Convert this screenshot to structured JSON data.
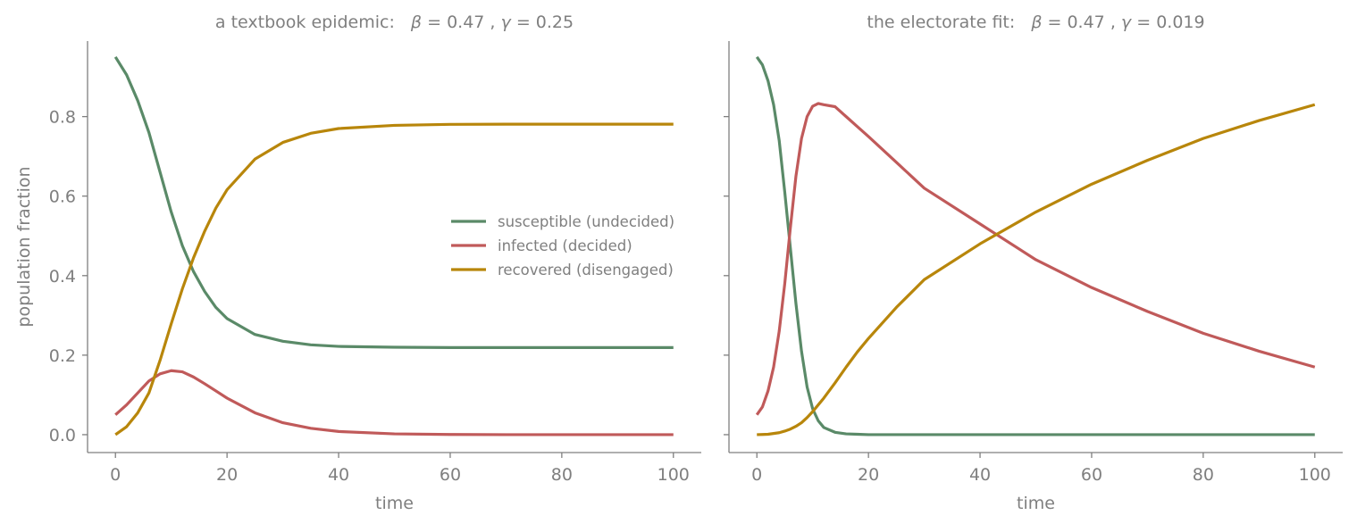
{
  "colors": {
    "susceptible": "#5a8a68",
    "infected": "#c05a5a",
    "recovered": "#b8860b",
    "text": "#7f7f7f"
  },
  "chart_data": [
    {
      "type": "line",
      "title_prefix": "a textbook epidemic:",
      "title_params": [
        {
          "symbol": "β",
          "value": "0.47"
        },
        {
          "symbol": "γ",
          "value": "0.25"
        }
      ],
      "xlabel": "time",
      "ylabel": "population fraction",
      "xlim": [
        -5,
        105
      ],
      "ylim": [
        -0.045,
        0.99
      ],
      "xticks": [
        0,
        20,
        40,
        60,
        80,
        100
      ],
      "xtick_labels": [
        "0",
        "20",
        "40",
        "60",
        "80",
        "100"
      ],
      "yticks": [
        0.0,
        0.2,
        0.4,
        0.6,
        0.8
      ],
      "ytick_labels": [
        "0.0",
        "0.2",
        "0.4",
        "0.6",
        "0.8"
      ],
      "show_yticklabels": true,
      "grid": false,
      "legend_position": "center-right",
      "x": [
        0,
        2,
        4,
        6,
        8,
        10,
        12,
        14,
        16,
        18,
        20,
        25,
        30,
        35,
        40,
        50,
        60,
        70,
        80,
        90,
        100
      ],
      "series": [
        {
          "name": "susceptible (undecided)",
          "color_key": "susceptible",
          "values": [
            0.95,
            0.905,
            0.84,
            0.76,
            0.66,
            0.56,
            0.475,
            0.41,
            0.36,
            0.32,
            0.292,
            0.252,
            0.235,
            0.226,
            0.222,
            0.22,
            0.219,
            0.219,
            0.219,
            0.219,
            0.219
          ]
        },
        {
          "name": "infected (decided)",
          "color_key": "infected",
          "values": [
            0.05,
            0.075,
            0.105,
            0.135,
            0.153,
            0.161,
            0.158,
            0.145,
            0.128,
            0.11,
            0.092,
            0.055,
            0.03,
            0.016,
            0.008,
            0.002,
            0.0005,
            0.0,
            0.0,
            0.0,
            0.0
          ]
        },
        {
          "name": "recovered (disengaged)",
          "color_key": "recovered",
          "values": [
            0.0,
            0.02,
            0.055,
            0.105,
            0.187,
            0.279,
            0.367,
            0.445,
            0.512,
            0.57,
            0.616,
            0.693,
            0.735,
            0.758,
            0.77,
            0.778,
            0.7805,
            0.781,
            0.781,
            0.781,
            0.781
          ]
        }
      ]
    },
    {
      "type": "line",
      "title_prefix": "the electorate fit:",
      "title_params": [
        {
          "symbol": "β",
          "value": "0.47"
        },
        {
          "symbol": "γ",
          "value": "0.019"
        }
      ],
      "xlabel": "time",
      "ylabel": "",
      "xlim": [
        -5,
        105
      ],
      "ylim": [
        -0.045,
        0.99
      ],
      "xticks": [
        0,
        20,
        40,
        60,
        80,
        100
      ],
      "xtick_labels": [
        "0",
        "20",
        "40",
        "60",
        "80",
        "100"
      ],
      "yticks": [
        0.0,
        0.2,
        0.4,
        0.6,
        0.8
      ],
      "ytick_labels": [
        "",
        "",
        "",
        "",
        ""
      ],
      "show_yticklabels": false,
      "grid": false,
      "x": [
        0,
        1,
        2,
        3,
        4,
        5,
        6,
        7,
        8,
        9,
        10,
        11,
        12,
        14,
        16,
        18,
        20,
        25,
        30,
        40,
        50,
        60,
        70,
        80,
        90,
        100
      ],
      "series": [
        {
          "name": "susceptible (undecided)",
          "color_key": "susceptible",
          "values": [
            0.95,
            0.93,
            0.89,
            0.83,
            0.74,
            0.61,
            0.47,
            0.33,
            0.21,
            0.12,
            0.065,
            0.035,
            0.018,
            0.006,
            0.002,
            0.001,
            0.0,
            0.0,
            0.0,
            0.0,
            0.0,
            0.0,
            0.0,
            0.0,
            0.0,
            0.0
          ]
        },
        {
          "name": "infected (decided)",
          "color_key": "infected",
          "values": [
            0.05,
            0.07,
            0.11,
            0.17,
            0.26,
            0.38,
            0.52,
            0.65,
            0.745,
            0.8,
            0.826,
            0.833,
            0.83,
            0.825,
            0.8,
            0.775,
            0.75,
            0.685,
            0.62,
            0.53,
            0.44,
            0.37,
            0.31,
            0.255,
            0.21,
            0.17
          ]
        },
        {
          "name": "recovered (disengaged)",
          "color_key": "recovered",
          "values": [
            0.0,
            0.0005,
            0.001,
            0.003,
            0.005,
            0.009,
            0.014,
            0.021,
            0.03,
            0.043,
            0.058,
            0.075,
            0.092,
            0.13,
            0.17,
            0.208,
            0.242,
            0.32,
            0.39,
            0.48,
            0.56,
            0.63,
            0.69,
            0.745,
            0.79,
            0.83
          ]
        }
      ]
    }
  ]
}
